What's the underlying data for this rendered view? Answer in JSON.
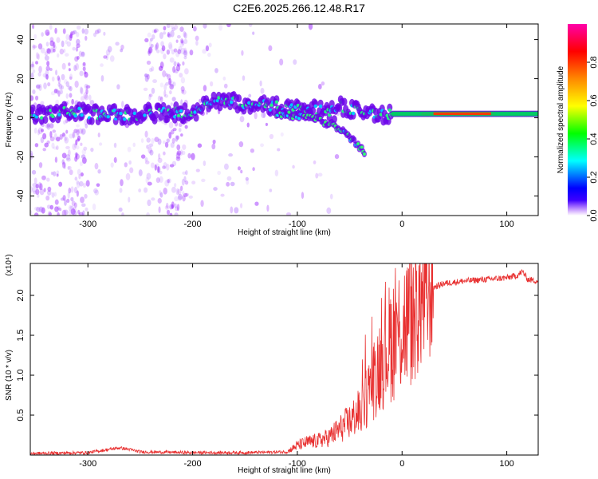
{
  "title": "C2E6.2025.266.12.48.R17",
  "colors": {
    "snr_line": "#e83030",
    "signal_core": "#7a00e8",
    "colorbar": [
      "#8a00ff",
      "#0000ff",
      "#00ffff",
      "#00ff00",
      "#ffff00",
      "#ff8800",
      "#ff0000",
      "#ff00aa"
    ]
  },
  "chart_data": [
    {
      "type": "heatmap",
      "name": "spectrogram",
      "title": "",
      "xlabel": "Height of straight line (km)",
      "ylabel": "Frequency (Hz)",
      "xlim": [
        -355,
        130
      ],
      "ylim": [
        -50,
        48
      ],
      "x_ticks": [
        -300,
        -200,
        -100,
        0,
        100
      ],
      "y_ticks": [
        -40,
        -20,
        0,
        20,
        40
      ],
      "colorbar": {
        "label": "Normalized spectral amplitude",
        "range": [
          0,
          1
        ],
        "ticks": [
          0.0,
          0.2,
          0.4,
          0.6,
          0.8
        ]
      },
      "ridge": {
        "x": [
          -355,
          -320,
          -290,
          -260,
          -230,
          -200,
          -180,
          -160,
          -140,
          -120,
          -100,
          -80,
          -65,
          -60,
          -40,
          -20,
          0,
          50,
          100,
          130
        ],
        "frequency": [
          2,
          3,
          2,
          1,
          3,
          2,
          9,
          8,
          7,
          6,
          5,
          4,
          3,
          6,
          3,
          2,
          2,
          2,
          2,
          2
        ]
      },
      "branch": {
        "x": [
          -120,
          -100,
          -80,
          -60,
          -45,
          -35
        ],
        "frequency": [
          2,
          1,
          -1,
          -5,
          -12,
          -18
        ]
      }
    },
    {
      "type": "line",
      "name": "snr",
      "title": "",
      "xlabel": "Height of straight line (km)",
      "ylabel": "SNR (10 * v/v)",
      "y_multiplier": "(x10⁴)",
      "xlim": [
        -355,
        130
      ],
      "ylim": [
        0,
        2.4
      ],
      "x_ticks": [
        -300,
        -200,
        -100,
        0,
        100
      ],
      "y_ticks": [
        0.5,
        1.0,
        1.5,
        2.0
      ],
      "series": [
        {
          "x": [
            -355,
            -300,
            -280,
            -270,
            -260,
            -250,
            -200,
            -150,
            -110,
            -100,
            -90,
            -80,
            -70,
            -60,
            -50,
            -40,
            -30,
            -20,
            -10,
            0,
            10,
            20,
            30,
            40,
            60,
            80,
            100,
            110,
            115,
            120,
            130
          ],
          "y": [
            0.02,
            0.03,
            0.07,
            0.09,
            0.07,
            0.04,
            0.03,
            0.03,
            0.04,
            0.12,
            0.16,
            0.18,
            0.22,
            0.32,
            0.42,
            0.55,
            0.85,
            1.2,
            1.45,
            1.6,
            1.75,
            1.95,
            2.1,
            2.15,
            2.18,
            2.2,
            2.22,
            2.25,
            2.3,
            2.2,
            2.18
          ]
        }
      ]
    }
  ]
}
